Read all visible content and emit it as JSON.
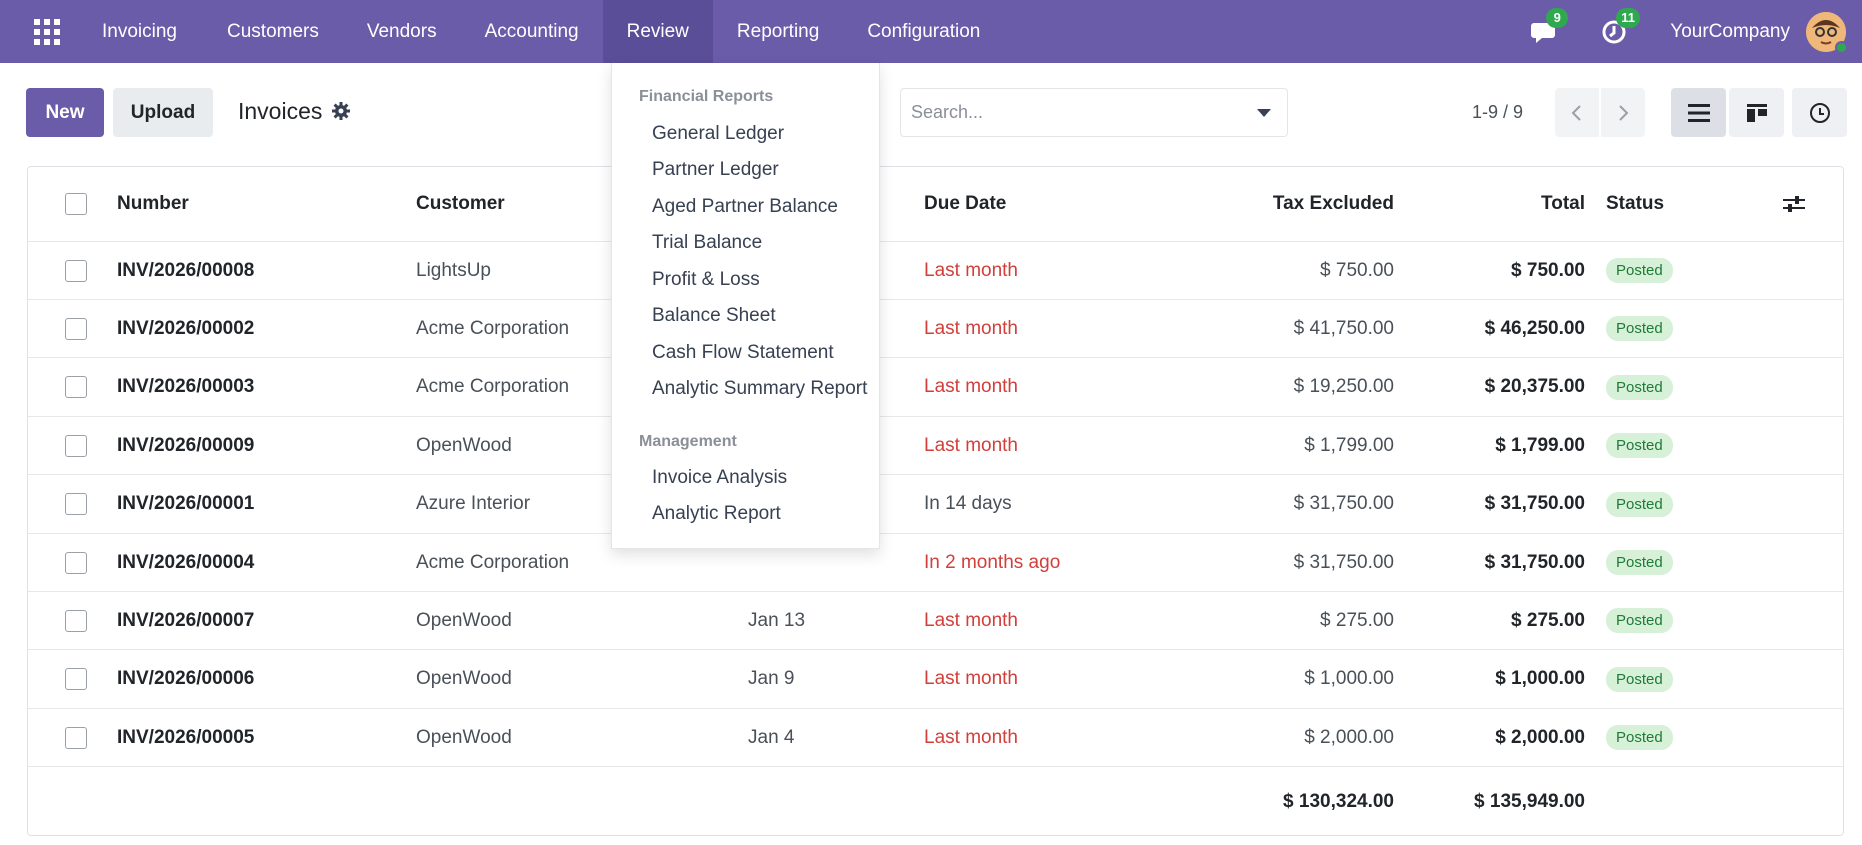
{
  "navbar": {
    "apps_icon": "apps-grid-icon",
    "brand": "Invoicing",
    "menu": [
      "Customers",
      "Vendors",
      "Accounting",
      "Review",
      "Reporting",
      "Configuration"
    ],
    "messages_count": "9",
    "activities_count": "11",
    "company": "YourCompany",
    "accent_color": "#6a5ca8"
  },
  "control": {
    "new_label": "New",
    "upload_label": "Upload",
    "title": "Invoices",
    "search_placeholder": "Search...",
    "pager": "1-9 / 9"
  },
  "dropdown": {
    "section1": "Financial Reports",
    "items1": [
      "General Ledger",
      "Partner Ledger",
      "Aged Partner Balance",
      "Trial Balance",
      "Profit & Loss",
      "Balance Sheet",
      "Cash Flow Statement",
      "Analytic Summary Report"
    ],
    "section2": "Management",
    "items2": [
      "Invoice Analysis",
      "Analytic Report"
    ]
  },
  "table": {
    "headers": {
      "number": "Number",
      "customer": "Customer",
      "due_date": "Due Date",
      "tax_excluded": "Tax Excluded",
      "total": "Total",
      "status": "Status"
    },
    "rows": [
      {
        "number": "INV/2026/00008",
        "customer": "LightsUp",
        "date": "",
        "due": "Last month",
        "overdue": true,
        "tax_excluded": "$ 750.00",
        "total": "$ 750.00",
        "status": "Posted"
      },
      {
        "number": "INV/2026/00002",
        "customer": "Acme Corporation",
        "date": "",
        "due": "Last month",
        "overdue": true,
        "tax_excluded": "$ 41,750.00",
        "total": "$ 46,250.00",
        "status": "Posted"
      },
      {
        "number": "INV/2026/00003",
        "customer": "Acme Corporation",
        "date": "",
        "due": "Last month",
        "overdue": true,
        "tax_excluded": "$ 19,250.00",
        "total": "$ 20,375.00",
        "status": "Posted"
      },
      {
        "number": "INV/2026/00009",
        "customer": "OpenWood",
        "date": "",
        "due": "Last month",
        "overdue": true,
        "tax_excluded": "$ 1,799.00",
        "total": "$ 1,799.00",
        "status": "Posted"
      },
      {
        "number": "INV/2026/00001",
        "customer": "Azure Interior",
        "date": "",
        "due": "In 14 days",
        "overdue": false,
        "tax_excluded": "$ 31,750.00",
        "total": "$ 31,750.00",
        "status": "Posted"
      },
      {
        "number": "INV/2026/00004",
        "customer": "Acme Corporation",
        "date": "",
        "due": "In 2 months ago",
        "overdue": true,
        "tax_excluded": "$ 31,750.00",
        "total": "$ 31,750.00",
        "status": "Posted"
      },
      {
        "number": "INV/2026/00007",
        "customer": "OpenWood",
        "date": "Jan 13",
        "due": "Last month",
        "overdue": true,
        "tax_excluded": "$ 275.00",
        "total": "$ 275.00",
        "status": "Posted"
      },
      {
        "number": "INV/2026/00006",
        "customer": "OpenWood",
        "date": "Jan 9",
        "due": "Last month",
        "overdue": true,
        "tax_excluded": "$ 1,000.00",
        "total": "$ 1,000.00",
        "status": "Posted"
      },
      {
        "number": "INV/2026/00005",
        "customer": "OpenWood",
        "date": "Jan 4",
        "due": "Last month",
        "overdue": true,
        "tax_excluded": "$ 2,000.00",
        "total": "$ 2,000.00",
        "status": "Posted"
      }
    ],
    "totals": {
      "tax_excluded": "$ 130,324.00",
      "total": "$ 135,949.00"
    },
    "overdue_color": "#d23f3a",
    "badge_color": "#d7f0d8"
  }
}
